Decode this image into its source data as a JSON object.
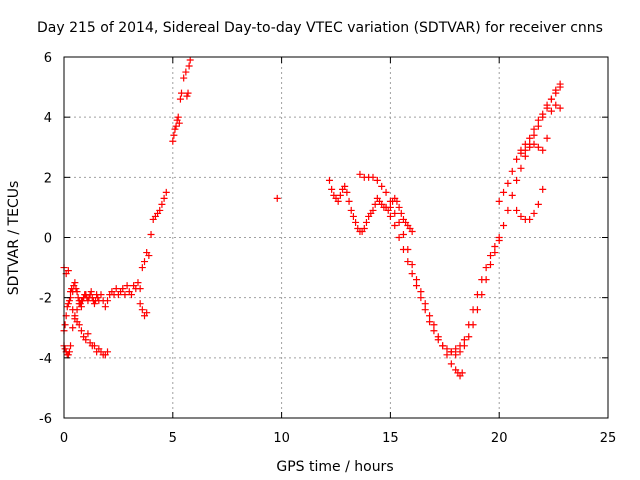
{
  "chart_data": {
    "type": "scatter",
    "title": "Day 215 of 2014, Sidereal Day-to-day VTEC variation (SDTVAR) for receiver cnns",
    "xlabel": "GPS time / hours",
    "ylabel": "SDTVAR / TECUs",
    "xlim": [
      0,
      25
    ],
    "ylim": [
      -6,
      6
    ],
    "xticks": [
      0,
      5,
      10,
      15,
      20,
      25
    ],
    "yticks": [
      -6,
      -4,
      -2,
      0,
      2,
      4,
      6
    ],
    "grid": true,
    "marker": "+",
    "series": [
      {
        "name": "SDTVAR",
        "color": "#ff0000",
        "x": [
          0.0,
          0.05,
          0.1,
          0.15,
          0.2,
          0.25,
          0.3,
          0.35,
          0.4,
          0.45,
          0.5,
          0.55,
          0.6,
          0.65,
          0.7,
          0.75,
          0.8,
          0.85,
          0.9,
          0.95,
          1.0,
          1.05,
          1.1,
          1.15,
          1.2,
          1.25,
          1.3,
          1.35,
          1.4,
          1.45,
          1.5,
          1.55,
          1.6,
          1.7,
          1.8,
          1.9,
          2.0,
          2.1,
          2.2,
          2.3,
          2.4,
          2.5,
          2.6,
          2.7,
          2.8,
          2.9,
          3.0,
          3.1,
          3.2,
          3.3,
          3.4,
          3.5,
          3.6,
          3.7,
          3.8,
          3.9,
          4.0,
          4.1,
          4.2,
          4.3,
          4.4,
          4.5,
          4.6,
          4.7,
          0.0,
          0.1,
          0.2,
          0.3,
          0.4,
          0.5,
          0.6,
          0.7,
          0.8,
          0.9,
          1.0,
          1.1,
          1.2,
          1.3,
          1.4,
          1.5,
          1.6,
          1.7,
          1.8,
          1.9,
          2.0,
          0.0,
          0.05,
          0.1,
          0.15,
          0.2,
          0.25,
          0.3,
          0.4,
          0.5,
          0.6,
          0.7,
          0.8,
          0.9,
          1.0,
          3.5,
          3.6,
          3.7,
          3.8,
          5.0,
          5.05,
          5.1,
          5.15,
          5.2,
          5.25,
          5.3,
          5.35,
          5.4,
          5.5,
          5.6,
          5.65,
          5.7,
          5.75,
          5.8,
          9.8,
          12.2,
          12.3,
          12.4,
          12.5,
          12.6,
          12.7,
          12.8,
          12.9,
          13.0,
          13.1,
          13.2,
          13.3,
          13.4,
          13.5,
          13.6,
          13.7,
          13.8,
          13.9,
          14.0,
          14.1,
          14.2,
          14.3,
          14.4,
          14.5,
          14.6,
          14.7,
          14.8,
          14.9,
          15.0,
          15.1,
          15.2,
          15.3,
          15.4,
          15.5,
          15.6,
          15.7,
          15.8,
          15.9,
          16.0,
          13.6,
          13.8,
          14.0,
          14.2,
          14.4,
          14.6,
          14.8,
          15.0,
          15.2,
          15.4,
          15.6,
          15.8,
          16.0,
          16.2,
          16.4,
          16.6,
          16.8,
          17.0,
          17.2,
          17.4,
          17.6,
          17.8,
          18.0,
          18.1,
          18.2,
          18.3,
          14.8,
          15.0,
          15.2,
          15.4,
          15.6,
          15.8,
          16.0,
          16.2,
          16.4,
          16.6,
          16.8,
          17.0,
          17.2,
          17.4,
          17.6,
          17.8,
          18.0,
          18.2,
          18.4,
          18.6,
          18.8,
          19.0,
          19.2,
          19.4,
          19.6,
          19.8,
          20.0,
          17.8,
          18.0,
          18.2,
          18.4,
          18.6,
          18.8,
          19.0,
          19.2,
          19.4,
          19.6,
          19.8,
          20.0,
          20.2,
          20.4,
          20.6,
          20.8,
          21.0,
          21.2,
          21.4,
          21.6,
          21.8,
          22.0,
          22.2,
          22.4,
          22.6,
          22.8,
          20.0,
          20.2,
          20.4,
          20.6,
          20.8,
          21.0,
          21.2,
          21.4,
          21.6,
          21.8,
          22.0,
          22.2,
          22.4,
          22.6,
          22.8,
          21.0,
          21.2,
          21.4,
          21.6,
          21.8,
          22.0,
          22.2,
          22.4,
          22.6,
          22.8,
          20.8,
          21.0,
          21.2,
          21.4,
          21.6,
          21.8,
          22.0
        ],
        "y": [
          -3.1,
          -2.9,
          -2.6,
          -2.3,
          -2.2,
          -2.1,
          -1.8,
          -1.7,
          -1.8,
          -1.6,
          -1.5,
          -1.7,
          -1.8,
          -2.0,
          -2.1,
          -2.2,
          -2.3,
          -2.1,
          -2.0,
          -1.9,
          -1.9,
          -2.0,
          -2.1,
          -2.0,
          -1.9,
          -1.8,
          -2.0,
          -2.1,
          -2.2,
          -2.1,
          -1.9,
          -2.0,
          -2.1,
          -1.9,
          -2.1,
          -2.3,
          -2.1,
          -1.9,
          -1.8,
          -1.9,
          -1.7,
          -1.9,
          -1.8,
          -1.7,
          -1.9,
          -1.6,
          -1.8,
          -1.9,
          -1.6,
          -1.7,
          -1.5,
          -1.7,
          -1.0,
          -0.8,
          -0.5,
          -0.6,
          0.1,
          0.6,
          0.7,
          0.8,
          0.9,
          1.1,
          1.3,
          1.5,
          -1.0,
          -1.2,
          -1.1,
          -2.0,
          -2.4,
          -2.6,
          -2.8,
          -2.9,
          -3.1,
          -3.3,
          -3.4,
          -3.2,
          -3.5,
          -3.6,
          -3.6,
          -3.8,
          -3.7,
          -3.8,
          -3.9,
          -3.9,
          -3.8,
          -3.6,
          -3.7,
          -3.8,
          -3.9,
          -3.9,
          -3.8,
          -3.6,
          -3.0,
          -2.7,
          -2.4,
          -2.2,
          -2.1,
          -2.0,
          -1.9,
          -2.2,
          -2.4,
          -2.6,
          -2.5,
          3.2,
          3.4,
          3.6,
          3.7,
          3.9,
          4.0,
          3.8,
          4.6,
          4.8,
          5.3,
          5.5,
          4.7,
          4.8,
          5.7,
          5.9,
          1.3,
          1.9,
          1.6,
          1.4,
          1.3,
          1.2,
          1.4,
          1.6,
          1.7,
          1.5,
          1.2,
          0.9,
          0.7,
          0.5,
          0.3,
          0.2,
          0.2,
          0.3,
          0.5,
          0.7,
          0.8,
          0.9,
          1.1,
          1.3,
          1.2,
          1.1,
          1.0,
          1.0,
          0.9,
          1.0,
          1.2,
          1.3,
          1.2,
          1.0,
          0.8,
          0.6,
          0.5,
          0.4,
          0.3,
          0.2,
          2.1,
          2.0,
          2.0,
          2.0,
          1.9,
          1.7,
          1.5,
          1.2,
          0.8,
          0.5,
          0.1,
          -0.4,
          -0.9,
          -1.4,
          -1.8,
          -2.2,
          -2.6,
          -2.9,
          -3.3,
          -3.6,
          -3.9,
          -4.2,
          -4.4,
          -4.5,
          -4.6,
          -4.5,
          1.0,
          0.7,
          0.4,
          0.0,
          -0.4,
          -0.8,
          -1.2,
          -1.6,
          -2.0,
          -2.4,
          -2.8,
          -3.1,
          -3.4,
          -3.6,
          -3.7,
          -3.8,
          -3.7,
          -3.6,
          -3.4,
          -2.9,
          -2.4,
          -1.9,
          -1.4,
          -1.0,
          -0.6,
          -0.3,
          0.0,
          -3.8,
          -3.9,
          -3.8,
          -3.6,
          -3.3,
          -2.9,
          -2.4,
          -1.9,
          -1.4,
          -0.9,
          -0.5,
          -0.1,
          0.4,
          0.9,
          1.4,
          1.9,
          2.3,
          2.7,
          3.1,
          3.4,
          3.7,
          4.0,
          4.3,
          4.6,
          4.9,
          5.1,
          1.2,
          1.5,
          1.8,
          2.2,
          2.6,
          2.9,
          3.1,
          3.3,
          3.6,
          3.9,
          4.1,
          4.4,
          4.6,
          4.8,
          5.0,
          2.8,
          2.9,
          3.0,
          3.1,
          3.0,
          2.9,
          3.3,
          4.2,
          4.4,
          4.3,
          0.9,
          0.7,
          0.6,
          0.6,
          0.8,
          1.1,
          1.6
        ]
      }
    ]
  }
}
